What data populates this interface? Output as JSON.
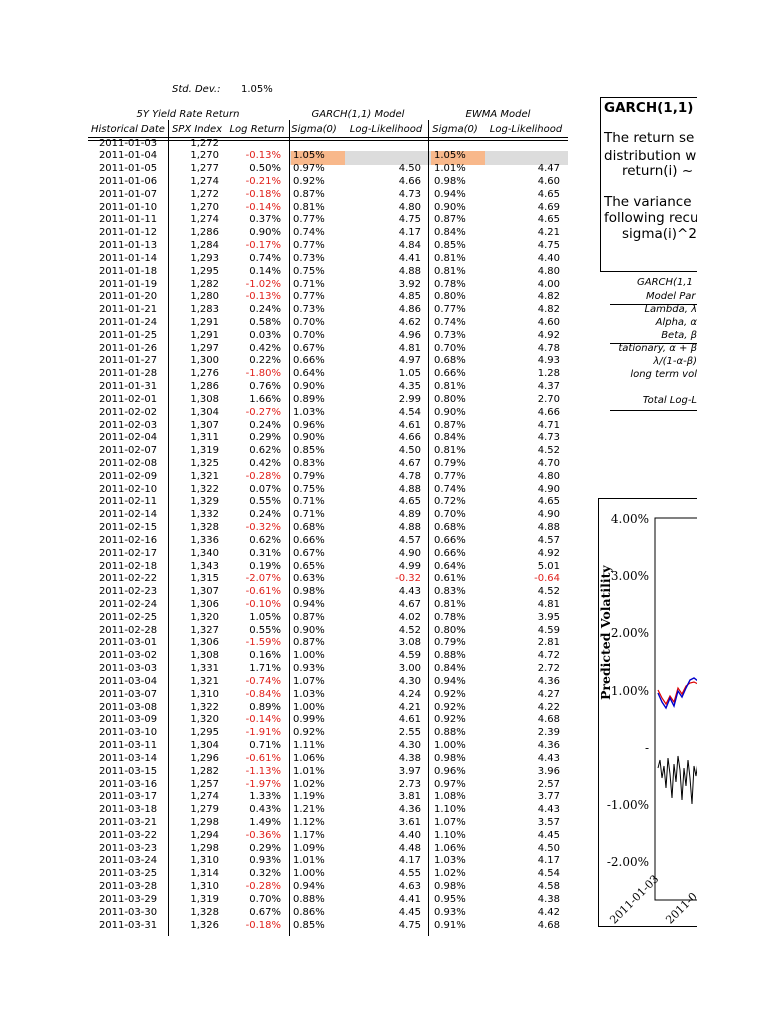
{
  "header": {
    "std_dev_label": "Std. Dev.:",
    "std_dev_value": "1.05%"
  },
  "table": {
    "group_headers": [
      "5Y Yield Rate Return",
      "GARCH(1,1) Model",
      "EWMA Model"
    ],
    "columns": [
      "Historical Date",
      "SPX Index",
      "Log Return",
      "Sigma(0)",
      "Log-Likelihood",
      "Sigma(0)",
      "Log-Likelihood"
    ],
    "rows": [
      [
        "2011-01-03",
        "1,272",
        null,
        null,
        null,
        null,
        null
      ],
      [
        "2011-01-04",
        "1,270",
        "-0.13%",
        "1.05%",
        null,
        "1.05%",
        null
      ],
      [
        "2011-01-05",
        "1,277",
        "0.50%",
        "0.97%",
        "4.50",
        "1.01%",
        "4.47"
      ],
      [
        "2011-01-06",
        "1,274",
        "-0.21%",
        "0.92%",
        "4.66",
        "0.98%",
        "4.60"
      ],
      [
        "2011-01-07",
        "1,272",
        "-0.18%",
        "0.87%",
        "4.73",
        "0.94%",
        "4.65"
      ],
      [
        "2011-01-10",
        "1,270",
        "-0.14%",
        "0.81%",
        "4.80",
        "0.90%",
        "4.69"
      ],
      [
        "2011-01-11",
        "1,274",
        "0.37%",
        "0.77%",
        "4.75",
        "0.87%",
        "4.65"
      ],
      [
        "2011-01-12",
        "1,286",
        "0.90%",
        "0.74%",
        "4.17",
        "0.84%",
        "4.21"
      ],
      [
        "2011-01-13",
        "1,284",
        "-0.17%",
        "0.77%",
        "4.84",
        "0.85%",
        "4.75"
      ],
      [
        "2011-01-14",
        "1,293",
        "0.74%",
        "0.73%",
        "4.41",
        "0.81%",
        "4.40"
      ],
      [
        "2011-01-18",
        "1,295",
        "0.14%",
        "0.75%",
        "4.88",
        "0.81%",
        "4.80"
      ],
      [
        "2011-01-19",
        "1,282",
        "-1.02%",
        "0.71%",
        "3.92",
        "0.78%",
        "4.00"
      ],
      [
        "2011-01-20",
        "1,280",
        "-0.13%",
        "0.77%",
        "4.85",
        "0.80%",
        "4.82"
      ],
      [
        "2011-01-21",
        "1,283",
        "0.24%",
        "0.73%",
        "4.86",
        "0.77%",
        "4.82"
      ],
      [
        "2011-01-24",
        "1,291",
        "0.58%",
        "0.70%",
        "4.62",
        "0.74%",
        "4.60"
      ],
      [
        "2011-01-25",
        "1,291",
        "0.03%",
        "0.70%",
        "4.96",
        "0.73%",
        "4.92"
      ],
      [
        "2011-01-26",
        "1,297",
        "0.42%",
        "0.67%",
        "4.81",
        "0.70%",
        "4.78"
      ],
      [
        "2011-01-27",
        "1,300",
        "0.22%",
        "0.66%",
        "4.97",
        "0.68%",
        "4.93"
      ],
      [
        "2011-01-28",
        "1,276",
        "-1.80%",
        "0.64%",
        "1.05",
        "0.66%",
        "1.28"
      ],
      [
        "2011-01-31",
        "1,286",
        "0.76%",
        "0.90%",
        "4.35",
        "0.81%",
        "4.37"
      ],
      [
        "2011-02-01",
        "1,308",
        "1.66%",
        "0.89%",
        "2.99",
        "0.80%",
        "2.70"
      ],
      [
        "2011-02-02",
        "1,304",
        "-0.27%",
        "1.03%",
        "4.54",
        "0.90%",
        "4.66"
      ],
      [
        "2011-02-03",
        "1,307",
        "0.24%",
        "0.96%",
        "4.61",
        "0.87%",
        "4.71"
      ],
      [
        "2011-02-04",
        "1,311",
        "0.29%",
        "0.90%",
        "4.66",
        "0.84%",
        "4.73"
      ],
      [
        "2011-02-07",
        "1,319",
        "0.62%",
        "0.85%",
        "4.50",
        "0.81%",
        "4.52"
      ],
      [
        "2011-02-08",
        "1,325",
        "0.42%",
        "0.83%",
        "4.67",
        "0.79%",
        "4.70"
      ],
      [
        "2011-02-09",
        "1,321",
        "-0.28%",
        "0.79%",
        "4.78",
        "0.77%",
        "4.80"
      ],
      [
        "2011-02-10",
        "1,322",
        "0.07%",
        "0.75%",
        "4.88",
        "0.74%",
        "4.90"
      ],
      [
        "2011-02-11",
        "1,329",
        "0.55%",
        "0.71%",
        "4.65",
        "0.72%",
        "4.65"
      ],
      [
        "2011-02-14",
        "1,332",
        "0.24%",
        "0.71%",
        "4.89",
        "0.70%",
        "4.90"
      ],
      [
        "2011-02-15",
        "1,328",
        "-0.32%",
        "0.68%",
        "4.88",
        "0.68%",
        "4.88"
      ],
      [
        "2011-02-16",
        "1,336",
        "0.62%",
        "0.66%",
        "4.57",
        "0.66%",
        "4.57"
      ],
      [
        "2011-02-17",
        "1,340",
        "0.31%",
        "0.67%",
        "4.90",
        "0.66%",
        "4.92"
      ],
      [
        "2011-02-18",
        "1,343",
        "0.19%",
        "0.65%",
        "4.99",
        "0.64%",
        "5.01"
      ],
      [
        "2011-02-22",
        "1,315",
        "-2.07%",
        "0.63%",
        "-0.32",
        "0.61%",
        "-0.64"
      ],
      [
        "2011-02-23",
        "1,307",
        "-0.61%",
        "0.98%",
        "4.43",
        "0.83%",
        "4.52"
      ],
      [
        "2011-02-24",
        "1,306",
        "-0.10%",
        "0.94%",
        "4.67",
        "0.81%",
        "4.81"
      ],
      [
        "2011-02-25",
        "1,320",
        "1.05%",
        "0.87%",
        "4.02",
        "0.78%",
        "3.95"
      ],
      [
        "2011-02-28",
        "1,327",
        "0.55%",
        "0.90%",
        "4.52",
        "0.80%",
        "4.59"
      ],
      [
        "2011-03-01",
        "1,306",
        "-1.59%",
        "0.87%",
        "3.08",
        "0.79%",
        "2.81"
      ],
      [
        "2011-03-02",
        "1,308",
        "0.16%",
        "1.00%",
        "4.59",
        "0.88%",
        "4.72"
      ],
      [
        "2011-03-03",
        "1,331",
        "1.71%",
        "0.93%",
        "3.00",
        "0.84%",
        "2.72"
      ],
      [
        "2011-03-04",
        "1,321",
        "-0.74%",
        "1.07%",
        "4.30",
        "0.94%",
        "4.36"
      ],
      [
        "2011-03-07",
        "1,310",
        "-0.84%",
        "1.03%",
        "4.24",
        "0.92%",
        "4.27"
      ],
      [
        "2011-03-08",
        "1,322",
        "0.89%",
        "1.00%",
        "4.21",
        "0.92%",
        "4.22"
      ],
      [
        "2011-03-09",
        "1,320",
        "-0.14%",
        "0.99%",
        "4.61",
        "0.92%",
        "4.68"
      ],
      [
        "2011-03-10",
        "1,295",
        "-1.91%",
        "0.92%",
        "2.55",
        "0.88%",
        "2.39"
      ],
      [
        "2011-03-11",
        "1,304",
        "0.71%",
        "1.11%",
        "4.30",
        "1.00%",
        "4.36"
      ],
      [
        "2011-03-14",
        "1,296",
        "-0.61%",
        "1.06%",
        "4.38",
        "0.98%",
        "4.43"
      ],
      [
        "2011-03-15",
        "1,282",
        "-1.13%",
        "1.01%",
        "3.97",
        "0.96%",
        "3.96"
      ],
      [
        "2011-03-16",
        "1,257",
        "-1.97%",
        "1.02%",
        "2.73",
        "0.97%",
        "2.57"
      ],
      [
        "2011-03-17",
        "1,274",
        "1.33%",
        "1.19%",
        "3.81",
        "1.08%",
        "3.77"
      ],
      [
        "2011-03-18",
        "1,279",
        "0.43%",
        "1.21%",
        "4.36",
        "1.10%",
        "4.43"
      ],
      [
        "2011-03-21",
        "1,298",
        "1.49%",
        "1.12%",
        "3.61",
        "1.07%",
        "3.57"
      ],
      [
        "2011-03-22",
        "1,294",
        "-0.36%",
        "1.17%",
        "4.40",
        "1.10%",
        "4.45"
      ],
      [
        "2011-03-23",
        "1,298",
        "0.29%",
        "1.09%",
        "4.48",
        "1.06%",
        "4.50"
      ],
      [
        "2011-03-24",
        "1,310",
        "0.93%",
        "1.01%",
        "4.17",
        "1.03%",
        "4.17"
      ],
      [
        "2011-03-25",
        "1,314",
        "0.32%",
        "1.00%",
        "4.55",
        "1.02%",
        "4.54"
      ],
      [
        "2011-03-28",
        "1,310",
        "-0.28%",
        "0.94%",
        "4.63",
        "0.98%",
        "4.58"
      ],
      [
        "2011-03-29",
        "1,319",
        "0.70%",
        "0.88%",
        "4.41",
        "0.95%",
        "4.38"
      ],
      [
        "2011-03-30",
        "1,328",
        "0.67%",
        "0.86%",
        "4.45",
        "0.93%",
        "4.42"
      ],
      [
        "2011-03-31",
        "1,326",
        "-0.18%",
        "0.85%",
        "4.75",
        "0.91%",
        "4.68"
      ]
    ]
  },
  "side_panel": {
    "title": "GARCH(1,1)",
    "lines": [
      "The return se",
      "distribution w",
      "return(i) ~",
      "The variance",
      "following recu",
      "sigma(i)^2"
    ]
  },
  "parameters": {
    "title": "GARCH(1,1",
    "subtitle": "Model Par",
    "labels": [
      "Lambda, λ",
      "Alpha, α",
      "Beta, β",
      "tationary, α + β",
      "λ/(1-α-β)",
      "long term vol"
    ],
    "total": "Total Log-L"
  },
  "chart": {
    "y_axis_title": "Predicted Volatility",
    "yticks": [
      "4.00%",
      "3.00%",
      "2.00%",
      "1.00%",
      "-",
      "-1.00%",
      "-2.00%"
    ],
    "xticks": [
      "2011-01-03",
      "2011-0"
    ]
  }
}
